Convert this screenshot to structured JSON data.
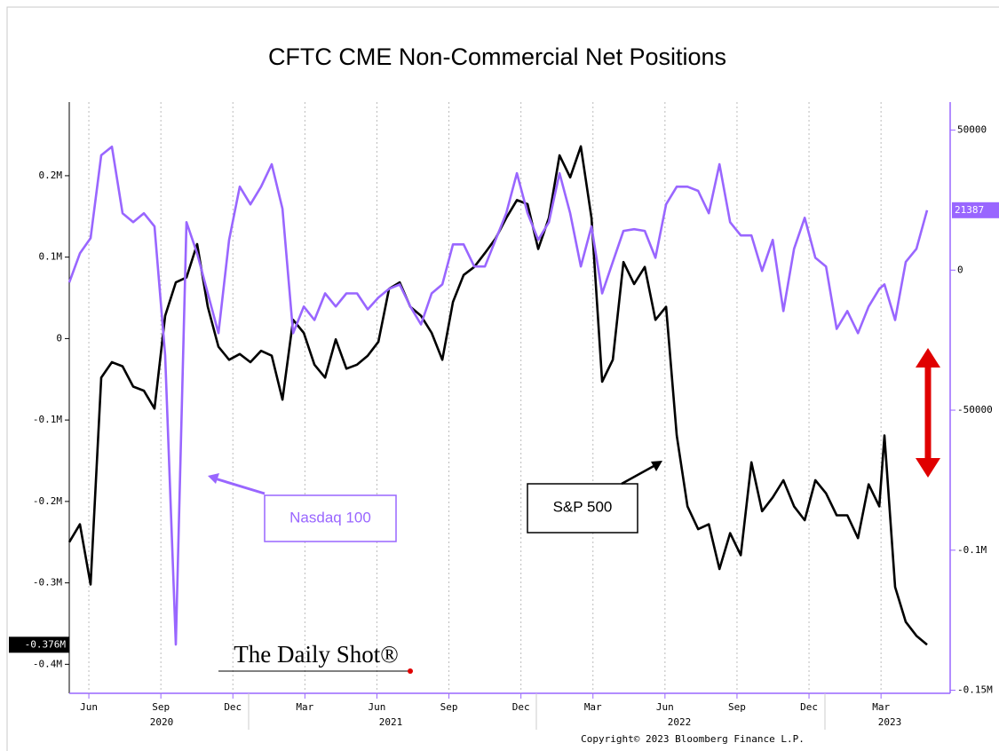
{
  "chart_data": {
    "type": "line",
    "title": "CFTC CME Non-Commercial Net Positions",
    "x": [
      2020.349,
      2020.386,
      2020.423,
      2020.46,
      2020.497,
      2020.534,
      2020.571,
      2020.608,
      2020.645,
      2020.682,
      2020.719,
      2020.756,
      2020.793,
      2020.83,
      2020.867,
      2020.904,
      2020.941,
      2020.978,
      2021.015,
      2021.052,
      2021.089,
      2021.126,
      2021.163,
      2021.2,
      2021.237,
      2021.274,
      2021.311,
      2021.348,
      2021.385,
      2021.422,
      2021.459,
      2021.496,
      2021.533,
      2021.57,
      2021.607,
      2021.644,
      2021.681,
      2021.718,
      2021.755,
      2021.792,
      2021.829,
      2021.866,
      2021.903,
      2021.94,
      2021.977,
      2022.014,
      2022.051,
      2022.088,
      2022.125,
      2022.162,
      2022.199,
      2022.236,
      2022.273,
      2022.31,
      2022.347,
      2022.384,
      2022.421,
      2022.458,
      2022.495,
      2022.532,
      2022.569,
      2022.606,
      2022.643,
      2022.68,
      2022.717,
      2022.754,
      2022.791,
      2022.828,
      2022.865,
      2022.902,
      2022.939,
      2022.976,
      2023.013,
      2023.05,
      2023.087,
      2023.124,
      2023.161,
      2023.179,
      2023.216,
      2023.253,
      2023.29,
      2023.327
    ],
    "series": [
      {
        "name": "S&P 500",
        "color": "#000000",
        "axis": "y",
        "last_value_label": "-0.376M",
        "values": [
          -250000,
          -228000,
          -302000,
          -48000,
          -29000,
          -34000,
          -59000,
          -64000,
          -86000,
          28000,
          69000,
          75000,
          116000,
          39000,
          -10000,
          -26000,
          -19000,
          -29000,
          -15000,
          -21000,
          -75000,
          23000,
          7000,
          -32000,
          -48000,
          -1000,
          -37000,
          -32000,
          -21000,
          -4000,
          61000,
          69000,
          39000,
          28000,
          7000,
          -26000,
          45000,
          78000,
          88000,
          105000,
          123000,
          148000,
          170000,
          165000,
          110000,
          148000,
          225000,
          198000,
          236000,
          148000,
          -53000,
          -26000,
          94000,
          67000,
          88000,
          23000,
          39000,
          -119000,
          -206000,
          -234000,
          -228000,
          -283000,
          -239000,
          -266000,
          -152000,
          -212000,
          -195000,
          -174000,
          -206000,
          -223000,
          -174000,
          -190000,
          -217000,
          -217000,
          -245000,
          -179000,
          -206000,
          -119000,
          -305000,
          -348000,
          -365000,
          -376000
        ]
      },
      {
        "name": "Nasdaq 100",
        "color": "#9966ff",
        "axis": "y2",
        "last_value_label": "21387",
        "values": [
          -4400,
          6000,
          11400,
          41000,
          44100,
          20300,
          17100,
          20300,
          15600,
          -30500,
          -133700,
          17100,
          6000,
          -8300,
          -22500,
          10800,
          29800,
          23500,
          29800,
          37800,
          21900,
          -22500,
          -13000,
          -17800,
          -8300,
          -13000,
          -8300,
          -8300,
          -14000,
          -9800,
          -6700,
          -5100,
          -13000,
          -19400,
          -8300,
          -5100,
          9200,
          9200,
          1300,
          1300,
          10800,
          20300,
          34600,
          20300,
          10800,
          17100,
          34600,
          20300,
          1300,
          15600,
          -8300,
          2900,
          14000,
          14600,
          14000,
          4400,
          23500,
          29800,
          29800,
          28300,
          20300,
          37800,
          17100,
          12400,
          12400,
          -300,
          10800,
          -14600,
          7600,
          18700,
          4400,
          1300,
          -21000,
          -14600,
          -22500,
          -13000,
          -6700,
          -5100,
          -17800,
          2900,
          7600,
          21387
        ]
      }
    ],
    "xlim": [
      2020.349,
      2023.407
    ],
    "xticks": [
      {
        "value": 2020.417,
        "label": "Jun"
      },
      {
        "value": 2020.667,
        "label": "Sep"
      },
      {
        "value": 2020.917,
        "label": "Dec"
      },
      {
        "value": 2021.167,
        "label": "Mar"
      },
      {
        "value": 2021.417,
        "label": "Jun"
      },
      {
        "value": 2021.667,
        "label": "Sep"
      },
      {
        "value": 2021.917,
        "label": "Dec"
      },
      {
        "value": 2022.167,
        "label": "Mar"
      },
      {
        "value": 2022.417,
        "label": "Jun"
      },
      {
        "value": 2022.667,
        "label": "Sep"
      },
      {
        "value": 2022.917,
        "label": "Dec"
      },
      {
        "value": 2023.167,
        "label": "Mar"
      }
    ],
    "x_year_labels": [
      "2020",
      "2021",
      "2022",
      "2023"
    ],
    "ylim": [
      -435600,
      290400
    ],
    "yticks": [
      {
        "value": -400000,
        "label": "-0.4M"
      },
      {
        "value": -300000,
        "label": "-0.3M"
      },
      {
        "value": -200000,
        "label": "-0.2M"
      },
      {
        "value": -100000,
        "label": "-0.1M"
      },
      0,
      {
        "value": 100000,
        "label": "0.1M"
      },
      {
        "value": 200000,
        "label": "0.2M"
      }
    ],
    "y2lim": [
      -151100,
      60000
    ],
    "y2ticks": [
      {
        "value": -150000,
        "label": "-0.15M"
      },
      {
        "value": -100000,
        "label": "-0.1M"
      },
      -50000,
      0,
      50000
    ],
    "grid": "x",
    "annotations": [
      "Nasdaq 100",
      "S&P 500"
    ],
    "watermark": "The Daily Shot®",
    "copyright": "Copyright© 2023 Bloomberg Finance L.P."
  }
}
